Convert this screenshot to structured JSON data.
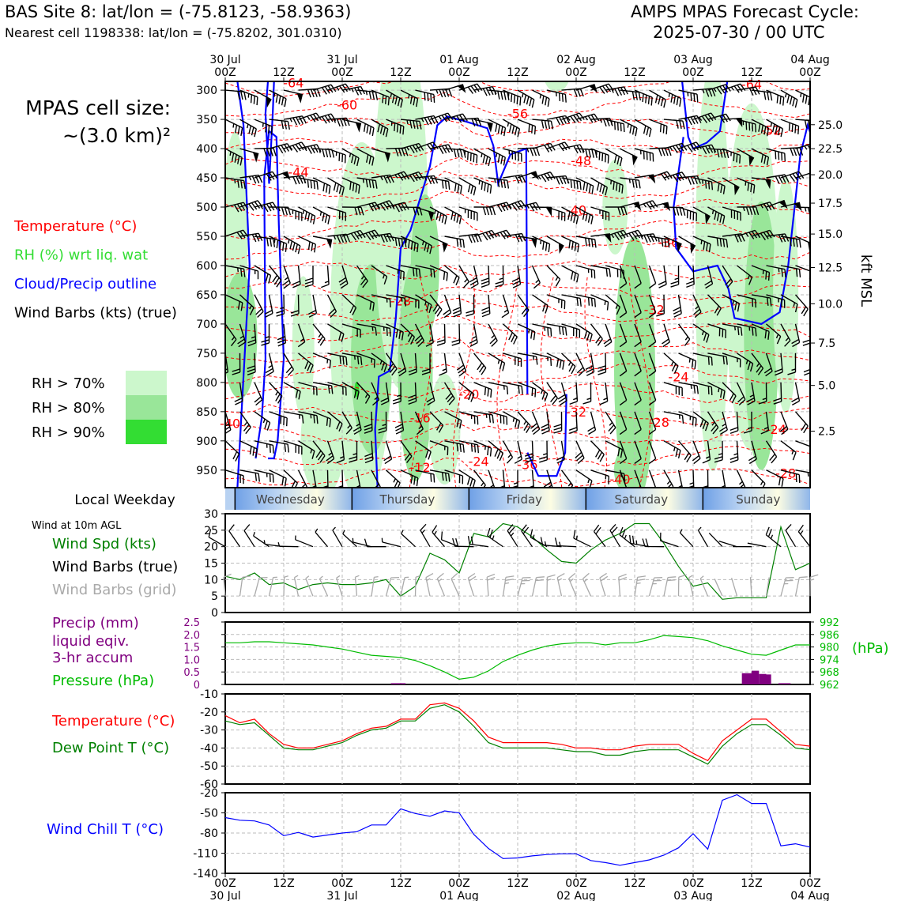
{
  "header": {
    "site_line": "BAS Site 8: lat/lon = (-75.8123, -58.9363)",
    "cell_line": "Nearest cell 1198338: lat/lon = (-75.8202, 301.0310)",
    "cycle_line1": "AMPS MPAS Forecast Cycle:",
    "cycle_line2": "2025-07-30 / 00 UTC"
  },
  "chart_data": [
    {
      "type": "heatmap",
      "panel": "cross-section",
      "cell_size_line1": "MPAS cell size:",
      "cell_size_line2": "~(3.0 km)²",
      "legend": [
        {
          "label": "Temperature (°C)",
          "color": "#ff0000"
        },
        {
          "label": "RH (%) wrt liq. wat",
          "color": "#33dd33"
        },
        {
          "label": "Cloud/Precip outline",
          "color": "#0000ff"
        },
        {
          "label": "Wind Barbs (kts) (true)",
          "color": "#000000"
        }
      ],
      "rh_legend": [
        {
          "label": "RH > 70%",
          "color": "#ccf7cc"
        },
        {
          "label": "RH > 80%",
          "color": "#99e699"
        },
        {
          "label": "RH > 90%",
          "color": "#33dd33"
        }
      ],
      "pressure_ticks": [
        300,
        350,
        400,
        450,
        500,
        550,
        600,
        650,
        700,
        750,
        800,
        850,
        900,
        950
      ],
      "ylim_hpa": [
        980,
        285
      ],
      "kft_ticks": [
        25.0,
        22.5,
        20.0,
        17.5,
        15.0,
        12.5,
        10.0,
        7.5,
        5.0,
        2.5
      ],
      "kft_ticks_text": [
        "25.0",
        "22.5",
        "20.0",
        "17.5",
        "15.0",
        "12.5",
        "10.0",
        "7.5",
        "5.0",
        "2.5"
      ],
      "kft_label": "kft MSL",
      "top_time_ticks": [
        {
          "h": 0,
          "l1": "30 Jul",
          "l2": "00Z"
        },
        {
          "h": 12,
          "l1": "",
          "l2": "12Z"
        },
        {
          "h": 24,
          "l1": "31 Jul",
          "l2": "00Z"
        },
        {
          "h": 36,
          "l1": "",
          "l2": "12Z"
        },
        {
          "h": 48,
          "l1": "01 Aug",
          "l2": "00Z"
        },
        {
          "h": 60,
          "l1": "",
          "l2": "12Z"
        },
        {
          "h": 72,
          "l1": "02 Aug",
          "l2": "00Z"
        },
        {
          "h": 84,
          "l1": "",
          "l2": "12Z"
        },
        {
          "h": 96,
          "l1": "03 Aug",
          "l2": "00Z"
        },
        {
          "h": 108,
          "l1": "",
          "l2": "12Z"
        },
        {
          "h": 120,
          "l1": "04 Aug",
          "l2": "00Z"
        }
      ],
      "temperature_labels": [
        {
          "h": 14,
          "p": 287,
          "text": "-64"
        },
        {
          "h": 25,
          "p": 325,
          "text": "-60"
        },
        {
          "h": 60,
          "p": 340,
          "text": "-56"
        },
        {
          "h": 108,
          "p": 290,
          "text": "-64"
        },
        {
          "h": 112,
          "p": 368,
          "text": "-52"
        },
        {
          "h": 15,
          "p": 440,
          "text": "-44"
        },
        {
          "h": 73,
          "p": 420,
          "text": "-48"
        },
        {
          "h": 72,
          "p": 505,
          "text": "-40"
        },
        {
          "h": 91,
          "p": 560,
          "text": "-36"
        },
        {
          "h": 36,
          "p": 660,
          "text": "-28"
        },
        {
          "h": 88,
          "p": 675,
          "text": "-32"
        },
        {
          "h": 50,
          "p": 820,
          "text": "-20"
        },
        {
          "h": 93,
          "p": 790,
          "text": "-24"
        },
        {
          "h": 1,
          "p": 870,
          "text": "-40"
        },
        {
          "h": 40,
          "p": 860,
          "text": "-16"
        },
        {
          "h": 72,
          "p": 850,
          "text": "-32"
        },
        {
          "h": 89,
          "p": 868,
          "text": "-28"
        },
        {
          "h": 113,
          "p": 880,
          "text": "-24"
        },
        {
          "h": 52,
          "p": 935,
          "text": "-24"
        },
        {
          "h": 62,
          "p": 940,
          "text": "-36"
        },
        {
          "h": 40,
          "p": 945,
          "text": "-12"
        },
        {
          "h": 81,
          "p": 965,
          "text": "-40"
        },
        {
          "h": 115,
          "p": 955,
          "text": "-28"
        }
      ]
    },
    {
      "type": "table",
      "panel": "weekday-bar",
      "title": "Local Weekday",
      "days": [
        {
          "name": "Wednesday",
          "start_h": 2,
          "end_h": 26
        },
        {
          "name": "Thursday",
          "start_h": 26,
          "end_h": 50
        },
        {
          "name": "Friday",
          "start_h": 50,
          "end_h": 74
        },
        {
          "name": "Saturday",
          "start_h": 74,
          "end_h": 98
        },
        {
          "name": "Sunday",
          "start_h": 98,
          "end_h": 122
        }
      ]
    },
    {
      "type": "line",
      "panel": "surface-wind",
      "subtitle": "Wind at 10m AGL",
      "labels": [
        {
          "text": "Wind Spd (kts)",
          "color": "#008000"
        },
        {
          "text": "Wind Barbs (true)",
          "color": "#000000"
        },
        {
          "text": "Wind Barbs (grid)",
          "color": "#aaaaaa"
        }
      ],
      "ylim": [
        0,
        30
      ],
      "yticks": [
        0,
        5,
        10,
        15,
        20,
        25,
        30
      ],
      "x": [
        0,
        3,
        6,
        9,
        12,
        15,
        18,
        21,
        24,
        27,
        30,
        33,
        36,
        39,
        42,
        45,
        48,
        51,
        54,
        57,
        60,
        63,
        66,
        69,
        72,
        75,
        78,
        81,
        84,
        87,
        90,
        93,
        96,
        99,
        102,
        105,
        108,
        111,
        114,
        117,
        120
      ],
      "series": [
        {
          "values": [
            11,
            10,
            12,
            8.5,
            9,
            7,
            8.5,
            9,
            8.5,
            8.5,
            9,
            10,
            5,
            8,
            18,
            16,
            12,
            24,
            23,
            27,
            26,
            23,
            19,
            15.5,
            15,
            19,
            22,
            24,
            27,
            27,
            21,
            14,
            8,
            9,
            4,
            4.5,
            4.5,
            4.5,
            26,
            13,
            15
          ],
          "color": "#008000"
        }
      ]
    },
    {
      "type": "bar",
      "panel": "precip-pressure",
      "labels": [
        {
          "text": "Precip (mm)",
          "color": "#800080"
        },
        {
          "text": "liquid eqiv.",
          "color": "#800080"
        },
        {
          "text": "3-hr accum",
          "color": "#800080"
        },
        {
          "text": "Pressure (hPa)",
          "color": "#00bb00"
        }
      ],
      "precip_ylim": [
        0,
        2.5
      ],
      "precip_ticks": [
        "2.5",
        "2.0",
        "1.5",
        "1.0",
        "0.5",
        "0"
      ],
      "pressure_ylim": [
        962,
        992
      ],
      "pressure_ticks": [
        992,
        986,
        980,
        974,
        968,
        962
      ],
      "pressure_unit": "(hPa)",
      "pressure_x": [
        0,
        3,
        6,
        9,
        12,
        15,
        18,
        21,
        24,
        27,
        30,
        33,
        36,
        39,
        42,
        45,
        48,
        51,
        54,
        57,
        60,
        63,
        66,
        69,
        72,
        75,
        78,
        81,
        84,
        87,
        90,
        93,
        96,
        99,
        102,
        105,
        108,
        111,
        114,
        117,
        120
      ],
      "pressure_values": [
        982,
        982,
        982.5,
        982.5,
        982,
        981.5,
        981,
        980,
        979,
        977.5,
        976,
        975.5,
        975,
        973.5,
        971,
        968,
        964.5,
        965.5,
        968.5,
        973,
        976,
        978.5,
        980.5,
        981.5,
        982,
        982,
        981,
        982,
        982,
        983.5,
        985.5,
        985,
        984.5,
        983,
        980.5,
        978.5,
        976.5,
        976,
        978.5,
        981,
        981
      ],
      "precip_bars": [
        {
          "h": 34,
          "w": 3,
          "v": 0.05
        },
        {
          "h": 106,
          "w": 2,
          "v": 0.45
        },
        {
          "h": 108,
          "w": 1.5,
          "v": 0.55
        },
        {
          "h": 109.5,
          "w": 1.5,
          "v": 0.42
        },
        {
          "h": 111,
          "w": 1,
          "v": 0.4
        },
        {
          "h": 113.5,
          "w": 2.5,
          "v": 0.05
        }
      ]
    },
    {
      "type": "line",
      "panel": "temperature",
      "labels": [
        {
          "text": "Temperature (°C)",
          "color": "#ff0000"
        },
        {
          "text": "Dew Point T (°C)",
          "color": "#008000"
        }
      ],
      "ylim": [
        -60,
        -10
      ],
      "yticks": [
        -10,
        -20,
        -30,
        -40,
        -50,
        -60
      ],
      "x": [
        0,
        3,
        6,
        9,
        12,
        15,
        18,
        21,
        24,
        27,
        30,
        33,
        36,
        39,
        42,
        45,
        48,
        51,
        54,
        57,
        60,
        63,
        66,
        69,
        72,
        75,
        78,
        81,
        84,
        87,
        90,
        93,
        96,
        99,
        102,
        105,
        108,
        111,
        114,
        117,
        120
      ],
      "series": [
        {
          "name": "Temperature (°C)",
          "color": "#ff0000",
          "values": [
            -22,
            -26,
            -24,
            -32,
            -38,
            -40,
            -40,
            -38,
            -36,
            -32,
            -29,
            -28,
            -24,
            -24,
            -16,
            -15,
            -18,
            -25,
            -34,
            -37,
            -37,
            -37,
            -37,
            -38,
            -40,
            -40,
            -41,
            -41,
            -39,
            -38,
            -38,
            -38,
            -43,
            -47,
            -36,
            -30,
            -24,
            -24,
            -31,
            -38,
            -39
          ]
        },
        {
          "name": "Dew Point T (°C)",
          "color": "#008000",
          "values": [
            -25,
            -27,
            -26,
            -33,
            -40,
            -41,
            -41,
            -39,
            -37,
            -33,
            -30,
            -29,
            -25,
            -25,
            -18,
            -16,
            -20,
            -28,
            -37,
            -40,
            -40,
            -40,
            -40,
            -41,
            -42,
            -42,
            -44,
            -44,
            -42,
            -41,
            -41,
            -41,
            -45,
            -49,
            -39,
            -32,
            -27,
            -27,
            -33,
            -40,
            -41
          ]
        }
      ]
    },
    {
      "type": "line",
      "panel": "wind-chill",
      "labels": [
        {
          "text": "Wind Chill T (°C)",
          "color": "#0000ff"
        }
      ],
      "ylim": [
        -140,
        -20
      ],
      "yticks": [
        -20,
        -50,
        -80,
        -110,
        -140
      ],
      "x": [
        0,
        3,
        6,
        9,
        12,
        15,
        18,
        21,
        24,
        27,
        30,
        33,
        36,
        39,
        42,
        45,
        48,
        51,
        54,
        57,
        60,
        63,
        66,
        69,
        72,
        75,
        78,
        81,
        84,
        87,
        90,
        93,
        96,
        99,
        102,
        105,
        108,
        111,
        114,
        117,
        120
      ],
      "series": [
        {
          "name": "Wind Chill T (°C)",
          "color": "#0000ff",
          "values": [
            -57,
            -61,
            -62,
            -68,
            -84,
            -79,
            -86,
            -83,
            -80,
            -78,
            -68,
            -68,
            -44,
            -51,
            -55,
            -47,
            -50,
            -82,
            -103,
            -118,
            -117,
            -114,
            -112,
            -111,
            -111,
            -121,
            -124,
            -128,
            -124,
            -120,
            -113,
            -102,
            -81,
            -104,
            -31,
            -23,
            -36,
            -36,
            -99,
            -96,
            -101
          ]
        }
      ],
      "bottom_time_ticks": [
        {
          "h": 0,
          "l1": "00Z",
          "l2": "30 Jul"
        },
        {
          "h": 12,
          "l1": "12Z",
          "l2": ""
        },
        {
          "h": 24,
          "l1": "00Z",
          "l2": "31 Jul"
        },
        {
          "h": 36,
          "l1": "12Z",
          "l2": ""
        },
        {
          "h": 48,
          "l1": "00Z",
          "l2": "01 Aug"
        },
        {
          "h": 60,
          "l1": "12Z",
          "l2": ""
        },
        {
          "h": 72,
          "l1": "00Z",
          "l2": "02 Aug"
        },
        {
          "h": 84,
          "l1": "12Z",
          "l2": ""
        },
        {
          "h": 96,
          "l1": "00Z",
          "l2": "03 Aug"
        },
        {
          "h": 108,
          "l1": "12Z",
          "l2": ""
        },
        {
          "h": 120,
          "l1": "00Z",
          "l2": "04 Aug"
        }
      ]
    }
  ]
}
